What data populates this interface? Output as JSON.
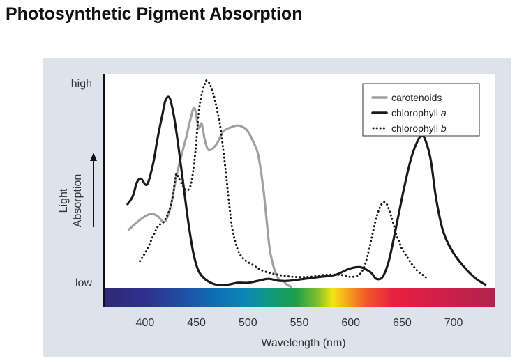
{
  "title": "Photosynthetic Pigment Absorption",
  "chart_data": {
    "type": "line",
    "title": "Photosynthetic Pigment Absorption",
    "xlabel": "Wavelength (nm)",
    "ylabel_lines": [
      "Light",
      "Absorption"
    ],
    "y_high_label": "high",
    "y_low_label": "low",
    "xlim": [
      360,
      740
    ],
    "ylim": [
      0,
      100
    ],
    "xticks": [
      400,
      450,
      500,
      550,
      600,
      650,
      700
    ],
    "xtick_labels": [
      "400",
      "450",
      "500",
      "550",
      "600",
      "650",
      "700"
    ],
    "grid": false,
    "legend_position": "top-right",
    "spectrum_bar": true,
    "series": [
      {
        "name": "carotenoids",
        "label_parts": [
          {
            "text": "carotenoids",
            "italic": false
          }
        ],
        "color": "#a0a0a0",
        "style": "solid",
        "x": [
          384,
          395,
          405,
          412,
          419,
          425,
          430,
          435,
          440,
          444,
          448,
          452,
          455,
          458,
          461,
          465,
          470,
          476,
          483,
          490,
          496,
          500,
          505,
          510,
          515,
          518,
          521,
          524,
          527,
          530,
          534,
          538,
          542
        ],
        "y": [
          26,
          31,
          34,
          33,
          30,
          38,
          52,
          63,
          73,
          82,
          88,
          78,
          80,
          72,
          67,
          67,
          70,
          76,
          78,
          79,
          78,
          76,
          71,
          64,
          47,
          32,
          17,
          9,
          4,
          1,
          0,
          -2,
          -3
        ]
      },
      {
        "name": "chlorophyll a",
        "label_parts": [
          {
            "text": "chlorophyll ",
            "italic": false
          },
          {
            "text": "a",
            "italic": true
          }
        ],
        "color": "#1a1a1a",
        "style": "solid",
        "x": [
          383,
          388,
          392,
          396,
          402,
          408,
          412,
          417,
          420,
          424,
          428,
          432,
          437,
          442,
          447,
          452,
          458,
          464,
          470,
          480,
          490,
          500,
          510,
          520,
          530,
          540,
          555,
          570,
          585,
          598,
          608,
          614,
          620,
          625,
          631,
          637,
          644,
          651,
          658,
          664,
          669,
          673,
          678,
          683,
          690,
          700,
          712,
          722,
          731
        ],
        "y": [
          39,
          43,
          50,
          52,
          49,
          60,
          72,
          85,
          92,
          93,
          84,
          70,
          50,
          30,
          14,
          5,
          1,
          -1,
          -2,
          -2,
          -1,
          -1,
          0,
          1,
          0,
          0,
          1,
          2,
          3,
          6,
          7,
          6,
          4,
          1,
          2,
          10,
          27,
          45,
          61,
          70,
          74,
          71,
          61,
          42,
          25,
          14,
          6,
          1,
          -2
        ]
      },
      {
        "name": "chlorophyll b",
        "label_parts": [
          {
            "text": "chlorophyll ",
            "italic": false
          },
          {
            "text": "b",
            "italic": true
          }
        ],
        "color": "#1a1a1a",
        "style": "dotted",
        "x": [
          395,
          402,
          408,
          413,
          418,
          423,
          427,
          430,
          433,
          437,
          441,
          445,
          449,
          452,
          455,
          458,
          460,
          463,
          467,
          470,
          473,
          476,
          479,
          482,
          485,
          490,
          496,
          505,
          515,
          530,
          545,
          560,
          575,
          590,
          600,
          608,
          613,
          617,
          620,
          623,
          626,
          629,
          632,
          635,
          638,
          641,
          644,
          647,
          650,
          655,
          660,
          665,
          670,
          675
        ],
        "y": [
          10,
          16,
          23,
          28,
          30,
          35,
          43,
          54,
          52,
          48,
          46,
          50,
          66,
          85,
          95,
          100,
          102,
          100,
          94,
          87,
          79,
          67,
          53,
          38,
          26,
          16,
          11,
          8,
          5,
          3,
          2,
          2,
          3,
          3,
          2,
          3,
          7,
          14,
          21,
          28,
          34,
          38,
          40,
          39,
          35,
          30,
          24,
          20,
          16,
          12,
          8,
          5,
          3,
          1
        ]
      }
    ]
  }
}
